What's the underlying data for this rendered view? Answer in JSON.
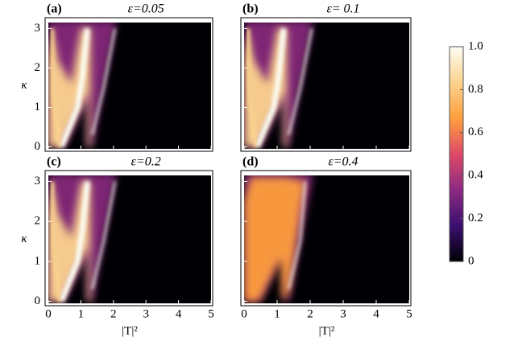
{
  "chart_data": {
    "type": "heatmap",
    "panels": [
      {
        "label": "(a)",
        "title": "ε=0.05"
      },
      {
        "label": "(b)",
        "title": "ε= 0.1"
      },
      {
        "label": "(c)",
        "title": "ε=0.2"
      },
      {
        "label": "(d)",
        "title": "ε=0.4"
      }
    ],
    "xlabel": "|T|²",
    "ylabel": "κ",
    "xlim": [
      0,
      5
    ],
    "xticks": [
      0,
      1,
      2,
      3,
      4,
      5
    ],
    "ylim": [
      -0.05,
      3.15
    ],
    "yticks": [
      0,
      1,
      2,
      3
    ],
    "colorbar": {
      "lim": [
        0,
        1
      ],
      "ticks": [
        {
          "value": 1,
          "label": "1.0"
        },
        0.8,
        0.6,
        0.4,
        0.2,
        0
      ],
      "colors": [
        "#000004",
        "#3b0f70",
        "#8c2981",
        "#de4968",
        "#fe9f3d",
        "#fcd38e",
        "#fcfdf4"
      ]
    }
  }
}
